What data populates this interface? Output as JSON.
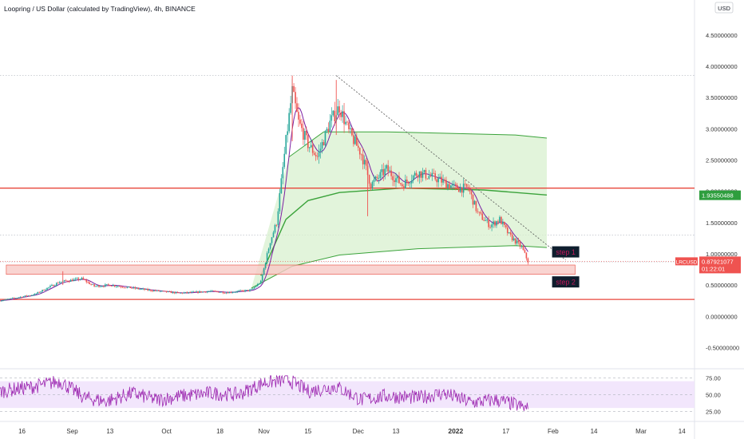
{
  "header": {
    "title": "Loopring / US Dollar (calculated by TradingView), 4h, BINANCE"
  },
  "currency_button": "USD",
  "colors": {
    "candle_up": "#26a69a",
    "candle_down": "#ef5350",
    "support_line": "#e8473b",
    "zone_fill": "#f8c9c6",
    "zone_stroke": "#e8473b",
    "vwap_line": "#3ba33b",
    "vwap_fill": "#d8f0cf",
    "ma_line": "#7b1fa2",
    "rsi_line": "#9c27b0",
    "rsi_band": "#efe0fb",
    "trendline": "#555555",
    "step_box": "#0f1e2e",
    "step_text": "#c2185b",
    "axis_text": "#333333"
  },
  "price_tags": {
    "symbol_label": "LRCUSD",
    "last_price": "0.87921077",
    "countdown": "01:22:01",
    "anchor_vwap": "1.93550488"
  },
  "annotations": {
    "step1": "step 1",
    "step2": "step 2"
  },
  "chart_data": [
    {
      "type": "candlestick",
      "title": "Loopring / US Dollar (calculated by TradingView), 4h, BINANCE",
      "ylim": [
        -0.75,
        4.65
      ],
      "y_ticks": [
        "4.50000000",
        "4.00000000",
        "3.50000000",
        "3.00000000",
        "2.50000000",
        "2.00000000",
        "1.50000000",
        "1.00000000",
        "0.50000000",
        "0.00000000",
        "-0.50000000"
      ],
      "y_tick_values": [
        4.5,
        4.0,
        3.5,
        3.0,
        2.5,
        2.0,
        1.5,
        1.0,
        0.5,
        0.0,
        -0.5
      ],
      "x_ticks": [
        "16",
        "Sep",
        "13",
        "Oct",
        "18",
        "Nov",
        "15",
        "Dec",
        "13",
        "2022",
        "17",
        "Feb",
        "14",
        "Mar",
        "14"
      ],
      "x_tick_dates": [
        "2021-08-16",
        "2021-09-01",
        "2021-09-13",
        "2021-10-01",
        "2021-10-18",
        "2021-11-01",
        "2021-11-15",
        "2021-12-01",
        "2021-12-13",
        "2022-01-01",
        "2022-01-17",
        "2022-02-01",
        "2022-02-14",
        "2022-03-01",
        "2022-03-14"
      ],
      "x_range": [
        "2021-08-09",
        "2022-03-18"
      ],
      "price_path": [
        [
          "2021-08-09",
          0.25
        ],
        [
          "2021-08-20",
          0.35
        ],
        [
          "2021-08-28",
          0.55
        ],
        [
          "2021-09-04",
          0.6
        ],
        [
          "2021-09-08",
          0.48
        ],
        [
          "2021-09-13",
          0.5
        ],
        [
          "2021-09-25",
          0.42
        ],
        [
          "2021-10-05",
          0.37
        ],
        [
          "2021-10-15",
          0.4
        ],
        [
          "2021-10-20",
          0.38
        ],
        [
          "2021-10-28",
          0.42
        ],
        [
          "2021-10-31",
          0.55
        ],
        [
          "2021-11-03",
          1.2
        ],
        [
          "2021-11-05",
          1.5
        ],
        [
          "2021-11-08",
          2.8
        ],
        [
          "2021-11-10",
          3.6
        ],
        [
          "2021-11-12",
          3.1
        ],
        [
          "2021-11-15",
          2.75
        ],
        [
          "2021-11-18",
          2.55
        ],
        [
          "2021-11-22",
          3.1
        ],
        [
          "2021-11-25",
          3.35
        ],
        [
          "2021-11-28",
          2.95
        ],
        [
          "2021-12-02",
          2.6
        ],
        [
          "2021-12-05",
          2.1
        ],
        [
          "2021-12-10",
          2.35
        ],
        [
          "2021-12-15",
          2.1
        ],
        [
          "2021-12-20",
          2.3
        ],
        [
          "2021-12-26",
          2.2
        ],
        [
          "2022-01-01",
          2.05
        ],
        [
          "2022-01-05",
          2.05
        ],
        [
          "2022-01-08",
          1.65
        ],
        [
          "2022-01-12",
          1.45
        ],
        [
          "2022-01-15",
          1.55
        ],
        [
          "2022-01-18",
          1.3
        ],
        [
          "2022-01-22",
          1.1
        ],
        [
          "2022-01-24",
          0.88
        ]
      ],
      "spikes": [
        {
          "date": "2021-11-10",
          "high": 3.85,
          "low": 2.8
        },
        {
          "date": "2021-11-24",
          "high": 3.78,
          "low": 2.9
        },
        {
          "date": "2021-12-04",
          "high": 2.5,
          "low": 1.6
        },
        {
          "date": "2021-08-29",
          "high": 0.72,
          "low": 0.5
        }
      ],
      "horizontal_lines": [
        2.05,
        0.27
      ],
      "dotted_levels": [
        3.85,
        1.3,
        0.87
      ],
      "support_zone": {
        "top": 0.82,
        "bottom": 0.67,
        "from": "2021-08-11",
        "to": "2022-02-08"
      },
      "trendline": {
        "from": [
          "2021-11-24",
          3.85
        ],
        "to": [
          "2022-02-05",
          0.9
        ]
      },
      "anchored_vwap": {
        "upper": [
          [
            "2021-11-09",
            2.55
          ],
          [
            "2021-11-20",
            2.95
          ],
          [
            "2021-12-10",
            2.95
          ],
          [
            "2022-01-20",
            2.9
          ],
          [
            "2022-01-30",
            2.85
          ]
        ],
        "middle": [
          [
            "2021-10-31",
            0.65
          ],
          [
            "2021-11-08",
            1.55
          ],
          [
            "2021-11-15",
            1.85
          ],
          [
            "2021-11-25",
            1.98
          ],
          [
            "2021-12-15",
            2.05
          ],
          [
            "2022-01-10",
            2.02
          ],
          [
            "2022-01-30",
            1.94
          ]
        ],
        "lower": [
          [
            "2021-10-28",
            0.45
          ],
          [
            "2021-11-10",
            0.8
          ],
          [
            "2021-11-25",
            0.98
          ],
          [
            "2021-12-20",
            1.08
          ],
          [
            "2022-01-20",
            1.13
          ],
          [
            "2022-01-30",
            1.1
          ]
        ]
      },
      "step_boxes": [
        {
          "label": "step 1",
          "date": "2022-02-05",
          "price": 1.03
        },
        {
          "label": "step 2",
          "date": "2022-02-05",
          "price": 0.55
        }
      ]
    },
    {
      "type": "line",
      "title": "",
      "ylim": [
        17,
        79
      ],
      "y_ticks": [
        "75.00",
        "50.00",
        "25.00"
      ],
      "y_tick_values": [
        75,
        50,
        25
      ],
      "band": [
        30,
        70
      ],
      "dashed_levels": [
        75,
        50,
        25
      ],
      "rsi_path": [
        [
          "2021-08-09",
          55
        ],
        [
          "2021-08-20",
          62
        ],
        [
          "2021-08-28",
          70
        ],
        [
          "2021-09-05",
          45
        ],
        [
          "2021-09-12",
          40
        ],
        [
          "2021-09-20",
          52
        ],
        [
          "2021-09-28",
          42
        ],
        [
          "2021-10-06",
          48
        ],
        [
          "2021-10-15",
          52
        ],
        [
          "2021-10-24",
          50
        ],
        [
          "2021-11-01",
          68
        ],
        [
          "2021-11-09",
          72
        ],
        [
          "2021-11-15",
          55
        ],
        [
          "2021-11-24",
          62
        ],
        [
          "2021-12-02",
          42
        ],
        [
          "2021-12-10",
          48
        ],
        [
          "2021-12-20",
          45
        ],
        [
          "2021-12-28",
          52
        ],
        [
          "2022-01-06",
          38
        ],
        [
          "2022-01-14",
          42
        ],
        [
          "2022-01-20",
          35
        ],
        [
          "2022-01-24",
          28
        ]
      ]
    }
  ]
}
